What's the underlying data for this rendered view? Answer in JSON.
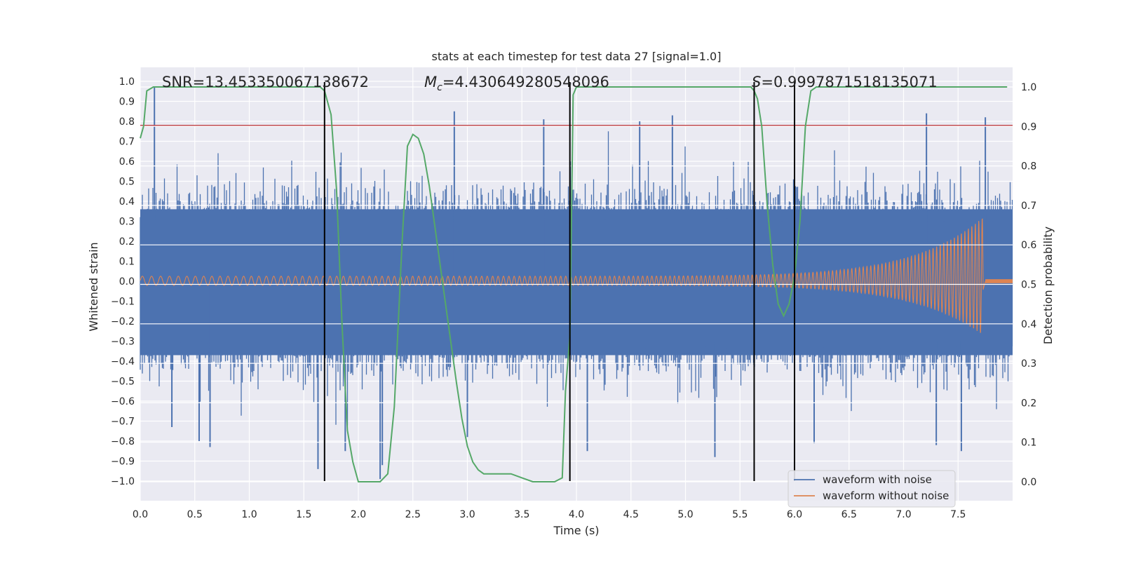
{
  "chart_data": {
    "type": "line",
    "title": "stats at each timestep for test data 27 [signal=1.0]",
    "xlabel": "Time (s)",
    "ylabel": "Whitened strain",
    "ylabel_right": "Detection probability",
    "xlim": [
      0.0,
      8.0
    ],
    "ylim": [
      -1.1,
      1.1
    ],
    "ylim_right": [
      -0.05,
      1.05
    ],
    "x_ticks": [
      "0.0",
      "0.5",
      "1.0",
      "1.5",
      "2.0",
      "2.5",
      "3.0",
      "3.5",
      "4.0",
      "4.5",
      "5.0",
      "5.5",
      "6.0",
      "6.5",
      "7.0",
      "7.5"
    ],
    "y_ticks": [
      "1.0",
      "0.9",
      "0.8",
      "0.7",
      "0.6",
      "0.5",
      "0.4",
      "0.3",
      "0.2",
      "0.1",
      "0.0",
      "-0.1",
      "-0.2",
      "-0.3",
      "-0.4",
      "-0.5",
      "-0.6",
      "-0.7",
      "-0.8",
      "-0.9",
      "-1.0"
    ],
    "y_ticks_right": [
      "1.0",
      "0.9",
      "0.8",
      "0.7",
      "0.6",
      "0.5",
      "0.4",
      "0.3",
      "0.2",
      "0.1",
      "0.0"
    ],
    "grid": true,
    "legend_position": "bottom-right",
    "annotations": {
      "snr": "SNR=13.453350067138672",
      "mc_symbol": "M",
      "mc_sub": "c",
      "mc_value": "=4.430649280548096",
      "s_symbol": "S",
      "s_value": "=0.9997871518135071"
    },
    "threshold_line": {
      "y": 0.78,
      "color": "#c44e52"
    },
    "vertical_lines_s": [
      1.69,
      3.94,
      5.63,
      6.0
    ],
    "noise_peaks_s": [
      {
        "t": 0.13,
        "v": 0.97
      },
      {
        "t": 0.29,
        "v": -0.73
      },
      {
        "t": 0.54,
        "v": -0.8
      },
      {
        "t": 0.64,
        "v": -0.83
      },
      {
        "t": 1.63,
        "v": -0.94
      },
      {
        "t": 1.88,
        "v": -0.85
      },
      {
        "t": 2.2,
        "v": -0.99
      },
      {
        "t": 2.22,
        "v": -0.92
      },
      {
        "t": 2.88,
        "v": 0.85
      },
      {
        "t": 3.0,
        "v": -0.78
      },
      {
        "t": 3.7,
        "v": 0.81
      },
      {
        "t": 4.1,
        "v": -0.85
      },
      {
        "t": 4.58,
        "v": 0.8
      },
      {
        "t": 4.88,
        "v": 0.83
      },
      {
        "t": 5.27,
        "v": -0.88
      },
      {
        "t": 6.18,
        "v": -0.81
      },
      {
        "t": 7.21,
        "v": 0.84
      },
      {
        "t": 7.3,
        "v": -0.82
      },
      {
        "t": 7.53,
        "v": -0.85
      },
      {
        "t": 7.75,
        "v": 0.82
      }
    ],
    "series": [
      {
        "name": "waveform with noise",
        "color": "#4c72b0",
        "axis": "left",
        "envelope_s": {
          "t": [
            0,
            8
          ],
          "upper": 0.36,
          "lower": -0.37,
          "peak_range": 0.75
        }
      },
      {
        "name": "waveform without noise",
        "color": "#dd8452",
        "axis": "left",
        "chirp_s": {
          "t_start": 0.0,
          "t_merger": 7.73,
          "t_end": 8.0,
          "amp_start": 0.025,
          "amp_peak": 0.32,
          "amp_peak_neg": -0.27,
          "freq_start": 70,
          "freq_end": 190
        }
      },
      {
        "name": "detection probability",
        "color": "#55a868",
        "axis": "right",
        "x": [
          0.0,
          0.03,
          0.06,
          0.12,
          0.2,
          0.5,
          1.0,
          1.4,
          1.55,
          1.65,
          1.69,
          1.75,
          1.8,
          1.85,
          1.9,
          1.95,
          2.0,
          2.1,
          2.2,
          2.27,
          2.33,
          2.4,
          2.45,
          2.5,
          2.55,
          2.6,
          2.65,
          2.7,
          2.75,
          2.8,
          2.85,
          2.9,
          2.95,
          3.0,
          3.05,
          3.1,
          3.15,
          3.2,
          3.25,
          3.3,
          3.4,
          3.5,
          3.6,
          3.7,
          3.8,
          3.87,
          3.9,
          3.94,
          3.97,
          4.0,
          4.05,
          4.2,
          5.0,
          5.5,
          5.6,
          5.63,
          5.66,
          5.7,
          5.75,
          5.8,
          5.85,
          5.9,
          5.95,
          6.0,
          6.05,
          6.1,
          6.15,
          6.2,
          6.5,
          7.0,
          7.5,
          7.95
        ],
        "y": [
          0.87,
          0.9,
          0.99,
          1.0,
          1.0,
          1.0,
          1.0,
          1.0,
          1.0,
          1.0,
          0.99,
          0.93,
          0.74,
          0.4,
          0.13,
          0.05,
          0.0,
          0.0,
          0.0,
          0.02,
          0.19,
          0.6,
          0.85,
          0.88,
          0.87,
          0.83,
          0.75,
          0.65,
          0.55,
          0.45,
          0.35,
          0.25,
          0.16,
          0.09,
          0.05,
          0.03,
          0.02,
          0.02,
          0.02,
          0.02,
          0.02,
          0.01,
          0.0,
          0.0,
          0.0,
          0.01,
          0.23,
          0.37,
          0.98,
          1.0,
          1.0,
          1.0,
          1.0,
          1.0,
          1.0,
          0.99,
          0.97,
          0.9,
          0.7,
          0.55,
          0.45,
          0.42,
          0.45,
          0.52,
          0.66,
          0.9,
          0.99,
          1.0,
          1.0,
          1.0,
          1.0,
          1.0
        ]
      }
    ]
  }
}
